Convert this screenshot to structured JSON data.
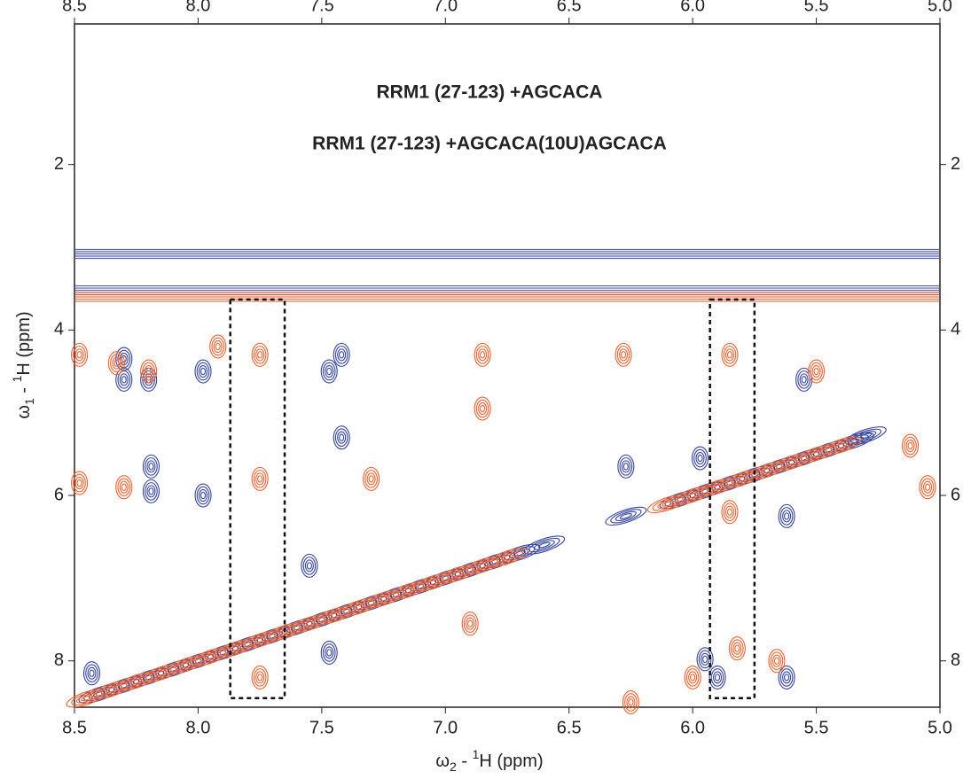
{
  "chart_data": {
    "type": "contour",
    "annotations": [
      "RRM1 (27-123) +AGCACA",
      "RRM1 (27-123) +AGCACA(10U)AGCACA"
    ],
    "x_label": {
      "omega": "ω",
      "sub": "2",
      "mid": " - ",
      "sup": "1",
      "rest": "H  (ppm)"
    },
    "y_label": {
      "omega": "ω",
      "sub": "1",
      "mid": " - ",
      "sup": "1",
      "rest": "H  (ppm)"
    },
    "xlim": [
      8.5,
      5.0
    ],
    "ylim": [
      0.3,
      8.56
    ],
    "xticks": [
      8.5,
      {
        "value": 8,
        "label": "8.0"
      },
      7.5,
      {
        "value": 7,
        "label": "7.0"
      },
      6.5,
      {
        "value": 6,
        "label": "6.0"
      },
      5.5,
      {
        "value": 5,
        "label": "5.0"
      }
    ],
    "yticks": [
      2,
      4,
      6,
      8
    ],
    "highlight_regions": [
      {
        "x": [
          7.87,
          7.65
        ],
        "y": [
          3.63,
          8.45
        ]
      },
      {
        "x": [
          5.93,
          5.75
        ],
        "y": [
          3.63,
          8.45
        ]
      }
    ],
    "series": [
      {
        "name": "RRM1 (27-123) +AGCACA",
        "color": "#34449e",
        "ridge_y": [
          3.08,
          3.52
        ],
        "x": [
          8.43,
          8.3,
          8.3,
          8.19,
          8.19,
          8.2,
          7.98,
          7.98,
          7.42,
          7.42,
          7.47,
          7.47,
          7.55,
          6.27,
          6.27,
          5.97,
          5.95,
          5.62,
          5.62,
          5.3,
          5.55,
          5.9,
          8.4,
          8.3,
          8.2,
          8.1,
          8.0,
          7.9,
          7.8,
          7.7,
          7.6,
          7.5,
          7.4,
          7.3,
          7.2,
          7.1,
          7.0,
          6.9,
          6.8,
          6.7,
          6.6,
          6.05,
          5.95,
          5.85,
          5.75,
          5.65,
          5.55,
          5.45,
          5.35
        ],
        "y": [
          8.15,
          4.35,
          4.6,
          5.65,
          5.95,
          4.6,
          6.0,
          4.5,
          4.3,
          5.3,
          4.5,
          7.9,
          6.85,
          5.65,
          6.25,
          5.55,
          7.98,
          6.25,
          8.2,
          5.28,
          4.6,
          8.2,
          8.4,
          8.3,
          8.2,
          8.1,
          8.0,
          7.9,
          7.8,
          7.7,
          7.6,
          7.5,
          7.4,
          7.3,
          7.2,
          7.1,
          7.0,
          6.9,
          6.8,
          6.7,
          6.6,
          6.05,
          5.95,
          5.85,
          5.75,
          5.65,
          5.55,
          5.45,
          5.35
        ]
      },
      {
        "name": "RRM1 (27-123) +AGCACA(10U)AGCACA",
        "color": "#ef6130",
        "ridge_y": [
          3.6
        ],
        "x": [
          8.48,
          8.48,
          8.33,
          8.3,
          8.2,
          7.92,
          7.75,
          7.75,
          7.75,
          7.3,
          6.85,
          6.85,
          6.9,
          6.28,
          6.25,
          5.85,
          5.82,
          5.85,
          5.5,
          5.12,
          5.05,
          6.0,
          5.66,
          8.45,
          8.35,
          8.25,
          8.15,
          8.05,
          7.95,
          7.85,
          7.75,
          7.65,
          7.55,
          7.45,
          7.35,
          7.25,
          7.15,
          7.05,
          6.95,
          6.85,
          6.75,
          6.1,
          6.0,
          5.9,
          5.8,
          5.7,
          5.6,
          5.5,
          5.4
        ],
        "y": [
          4.3,
          5.85,
          4.4,
          5.9,
          4.5,
          4.2,
          4.3,
          5.8,
          8.2,
          5.8,
          4.3,
          4.95,
          7.55,
          4.3,
          8.5,
          4.3,
          7.85,
          6.2,
          4.5,
          5.4,
          5.9,
          8.2,
          8.0,
          8.45,
          8.35,
          8.25,
          8.15,
          8.05,
          7.95,
          7.85,
          7.75,
          7.65,
          7.55,
          7.45,
          7.35,
          7.25,
          7.15,
          7.05,
          6.95,
          6.85,
          6.75,
          6.1,
          6.0,
          5.9,
          5.8,
          5.7,
          5.6,
          5.5,
          5.4
        ]
      }
    ]
  }
}
